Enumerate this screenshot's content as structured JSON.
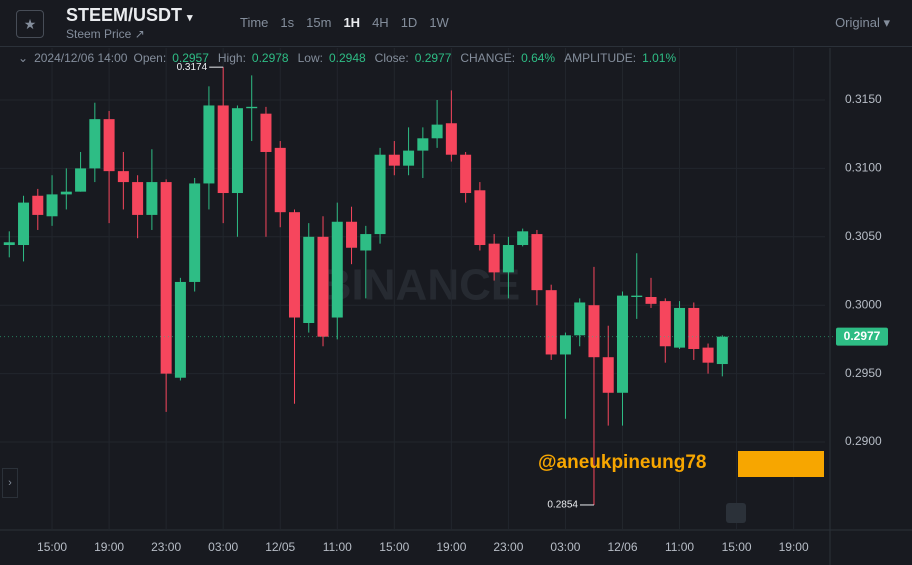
{
  "header": {
    "symbol": "STEEM/USDT",
    "subtitle": "Steem Price",
    "intervals": [
      "Time",
      "1s",
      "15m",
      "1H",
      "4H",
      "1D",
      "1W"
    ],
    "active_interval": "1H",
    "price_type": "Original"
  },
  "ohlc_info": {
    "time": "2024/12/06 14:00",
    "items": [
      {
        "label": "Open:",
        "value": "0.2957"
      },
      {
        "label": "High:",
        "value": "0.2978"
      },
      {
        "label": "Low:",
        "value": "0.2948"
      },
      {
        "label": "Close:",
        "value": "0.2977"
      },
      {
        "label": "CHANGE:",
        "value": "0.64%"
      },
      {
        "label": "AMPLITUDE:",
        "value": "1.01%"
      }
    ]
  },
  "watermark": "BINANCE",
  "overlay_text": "@aneukpineung78",
  "chart_data": {
    "type": "candlestick",
    "open": [
      0.3044,
      0.3044,
      0.308,
      0.3065,
      0.3081,
      0.3083,
      0.31,
      0.3136,
      0.3098,
      0.309,
      0.3066,
      0.309,
      0.2947,
      0.3017,
      0.3089,
      0.3146,
      0.3082,
      0.3144,
      0.314,
      0.3115,
      0.3068,
      0.2987,
      0.305,
      0.2991,
      0.3061,
      0.304,
      0.3052,
      0.311,
      0.3102,
      0.3113,
      0.3122,
      0.3133,
      0.311,
      0.3084,
      0.3045,
      0.3024,
      0.3044,
      0.3052,
      0.3011,
      0.2964,
      0.2978,
      0.3,
      0.2962,
      0.2936,
      0.3006,
      0.3006,
      0.3003,
      0.2969,
      0.2998,
      0.2969,
      0.2957
    ],
    "high": [
      0.3054,
      0.308,
      0.3085,
      0.3095,
      0.31,
      0.3112,
      0.3148,
      0.3142,
      0.3112,
      0.3095,
      0.3114,
      0.3092,
      0.302,
      0.3093,
      0.316,
      0.3174,
      0.3146,
      0.3168,
      0.3145,
      0.312,
      0.307,
      0.306,
      0.3065,
      0.3075,
      0.3072,
      0.3058,
      0.3115,
      0.312,
      0.313,
      0.313,
      0.315,
      0.3157,
      0.3112,
      0.309,
      0.3052,
      0.305,
      0.3056,
      0.3055,
      0.3015,
      0.298,
      0.3005,
      0.3028,
      0.2985,
      0.301,
      0.3038,
      0.302,
      0.3005,
      0.3003,
      0.3002,
      0.2972,
      0.2978
    ],
    "low": [
      0.3035,
      0.3032,
      0.3055,
      0.3058,
      0.307,
      0.3083,
      0.309,
      0.306,
      0.307,
      0.3049,
      0.3055,
      0.2922,
      0.2945,
      0.301,
      0.307,
      0.306,
      0.305,
      0.312,
      0.305,
      0.3057,
      0.2928,
      0.298,
      0.297,
      0.2975,
      0.303,
      0.3005,
      0.3045,
      0.3095,
      0.3095,
      0.3093,
      0.3115,
      0.3105,
      0.3075,
      0.304,
      0.3018,
      0.3005,
      0.3043,
      0.3,
      0.296,
      0.2917,
      0.297,
      0.2854,
      0.2912,
      0.2912,
      0.299,
      0.2998,
      0.2958,
      0.2968,
      0.296,
      0.295,
      0.2948
    ],
    "close": [
      0.3046,
      0.3075,
      0.3066,
      0.3081,
      0.3083,
      0.31,
      0.3136,
      0.3098,
      0.309,
      0.3066,
      0.309,
      0.295,
      0.3017,
      0.3089,
      0.3146,
      0.3082,
      0.3144,
      0.3145,
      0.3112,
      0.3068,
      0.2991,
      0.305,
      0.2977,
      0.3061,
      0.3042,
      0.3052,
      0.311,
      0.3102,
      0.3113,
      0.3122,
      0.3132,
      0.311,
      0.3082,
      0.3044,
      0.3024,
      0.3044,
      0.3054,
      0.3011,
      0.2964,
      0.2978,
      0.3002,
      0.2962,
      0.2936,
      0.3007,
      0.3007,
      0.3001,
      0.297,
      0.2998,
      0.2968,
      0.2958,
      0.2977
    ],
    "up_color": "#2ebd85",
    "down_color": "#f6465d",
    "xlim": [
      -0.65,
      57.2
    ],
    "xticks": [
      {
        "value": 3,
        "label": "15:00"
      },
      {
        "value": 7,
        "label": "19:00"
      },
      {
        "value": 11,
        "label": "23:00"
      },
      {
        "value": 15,
        "label": "03:00"
      },
      {
        "value": 19,
        "label": "12/05"
      },
      {
        "value": 23,
        "label": "11:00"
      },
      {
        "value": 27,
        "label": "15:00"
      },
      {
        "value": 31,
        "label": "19:00"
      },
      {
        "value": 35,
        "label": "23:00"
      },
      {
        "value": 39,
        "label": "03:00"
      },
      {
        "value": 43,
        "label": "12/06"
      },
      {
        "value": 47,
        "label": "11:00"
      },
      {
        "value": 51,
        "label": "15:00"
      },
      {
        "value": 55,
        "label": "19:00"
      }
    ],
    "ylim": [
      0.28357,
      0.3188
    ],
    "yticks": [
      {
        "value": 0.29,
        "label": "0.2900"
      },
      {
        "value": 0.295,
        "label": "0.2950"
      },
      {
        "value": 0.3,
        "label": "0.3000"
      },
      {
        "value": 0.305,
        "label": "0.3050"
      },
      {
        "value": 0.31,
        "label": "0.3100"
      },
      {
        "value": 0.315,
        "label": "0.3150"
      }
    ],
    "grid": true,
    "max_marker": {
      "value": 0.3174,
      "label": "0.3174"
    },
    "min_marker": {
      "value": 0.2854,
      "label": "0.2854"
    },
    "last_price": {
      "value": 0.2977,
      "label": "0.2977"
    }
  }
}
